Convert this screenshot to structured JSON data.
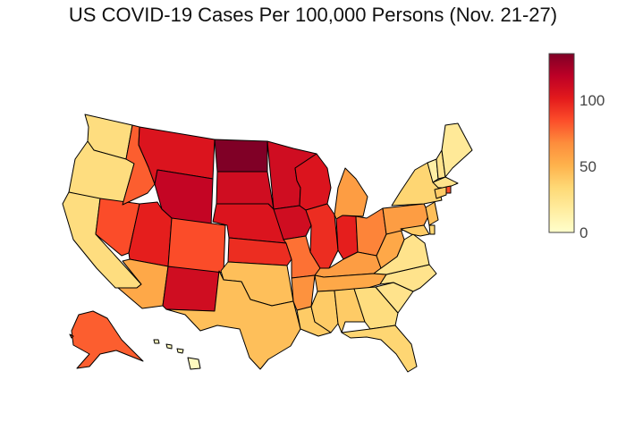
{
  "title": "US COVID-19 Cases Per 100,000 Persons (Nov. 21-27)",
  "colors": {
    "scale": [
      "#ffffcc",
      "#ffeda0",
      "#fed976",
      "#feb24c",
      "#fd8d3c",
      "#fc4e2a",
      "#e31a1c",
      "#bd0026",
      "#800026"
    ],
    "border": "#000000"
  },
  "colorbar": {
    "min": 0,
    "max": 135,
    "ticks": [
      {
        "value": 0,
        "label": "0"
      },
      {
        "value": 50,
        "label": "50"
      },
      {
        "value": 100,
        "label": "100"
      }
    ]
  },
  "chart_data": {
    "type": "choropleth",
    "scope": "usa",
    "title": "US COVID-19 Cases Per 100,000 Persons (Nov. 21-27)",
    "zmin": 0,
    "zmax": 135,
    "states": [
      {
        "code": "WA",
        "value": 30
      },
      {
        "code": "OR",
        "value": 30
      },
      {
        "code": "CA",
        "value": 30
      },
      {
        "code": "NV",
        "value": 85
      },
      {
        "code": "ID",
        "value": 80
      },
      {
        "code": "MT",
        "value": 105
      },
      {
        "code": "WY",
        "value": 115
      },
      {
        "code": "UT",
        "value": 100
      },
      {
        "code": "AZ",
        "value": 55
      },
      {
        "code": "NM",
        "value": 110
      },
      {
        "code": "CO",
        "value": 85
      },
      {
        "code": "ND",
        "value": 135
      },
      {
        "code": "SD",
        "value": 110
      },
      {
        "code": "NE",
        "value": 105
      },
      {
        "code": "KS",
        "value": 95
      },
      {
        "code": "OK",
        "value": 45
      },
      {
        "code": "TX",
        "value": 45
      },
      {
        "code": "MN",
        "value": 110
      },
      {
        "code": "IA",
        "value": 110
      },
      {
        "code": "MO",
        "value": 75
      },
      {
        "code": "AR",
        "value": 65
      },
      {
        "code": "LA",
        "value": 40
      },
      {
        "code": "WI",
        "value": 105
      },
      {
        "code": "IL",
        "value": 95
      },
      {
        "code": "MI",
        "value": 60
      },
      {
        "code": "IN",
        "value": 100
      },
      {
        "code": "OH",
        "value": 70
      },
      {
        "code": "KY",
        "value": 60
      },
      {
        "code": "TN",
        "value": 55
      },
      {
        "code": "MS",
        "value": 40
      },
      {
        "code": "AL",
        "value": 40
      },
      {
        "code": "GA",
        "value": 30
      },
      {
        "code": "FL",
        "value": 35
      },
      {
        "code": "SC",
        "value": 25
      },
      {
        "code": "NC",
        "value": 25
      },
      {
        "code": "VA",
        "value": 25
      },
      {
        "code": "WV",
        "value": 55
      },
      {
        "code": "PA",
        "value": 60
      },
      {
        "code": "NY",
        "value": 35
      },
      {
        "code": "VT",
        "value": 15
      },
      {
        "code": "NH",
        "value": 25
      },
      {
        "code": "ME",
        "value": 20
      },
      {
        "code": "MA",
        "value": 25
      },
      {
        "code": "RI",
        "value": 85
      },
      {
        "code": "CT",
        "value": 40
      },
      {
        "code": "NJ",
        "value": 45
      },
      {
        "code": "DE",
        "value": 35
      },
      {
        "code": "MD",
        "value": 40
      },
      {
        "code": "AK",
        "value": 80
      },
      {
        "code": "HI",
        "value": 5
      }
    ]
  }
}
